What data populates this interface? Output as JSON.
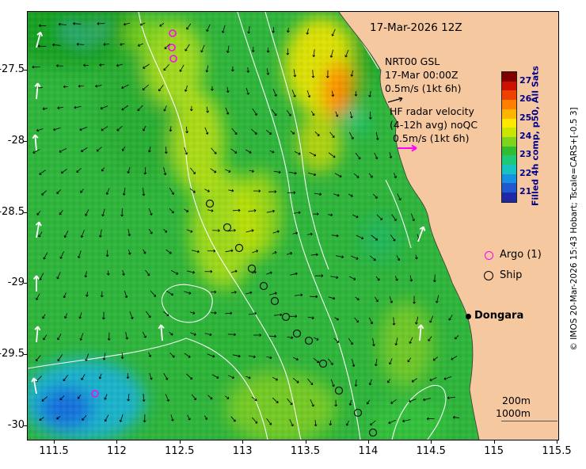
{
  "title_date": "17-Mar-2026 12Z",
  "nrt_block": [
    "NRT00 GSL",
    "17-Mar 00:00Z",
    "0.5m/s (1kt 6h)"
  ],
  "hf_block": [
    "HF radar velocity",
    "(4-12h avg) noQC",
    "0.5m/s (1kt 6h)"
  ],
  "legend": {
    "argo_label": "Argo (1)",
    "ship_label": "Ship"
  },
  "place_label": "Dongara",
  "depth_labels": [
    "200m",
    "1000m"
  ],
  "copyright": "© IMOS 20-Mar-2026 15:43 Hobart; Tscale=CARS+[-0.5 3]",
  "colorbar": {
    "label": "Filled 4h comp, p50, All Sats",
    "tick_values": [
      27,
      26,
      25,
      24,
      23,
      22,
      21
    ],
    "range": [
      20.5,
      27.5
    ],
    "colors_top_to_bottom": [
      "#800000",
      "#cc1100",
      "#f04000",
      "#ff8000",
      "#ffb400",
      "#ffe800",
      "#c8e600",
      "#7cd41e",
      "#30be30",
      "#1ec878",
      "#16c2c2",
      "#1690e0",
      "#2058d0",
      "#2028a8"
    ]
  },
  "axes": {
    "x_ticks": [
      111.5,
      112,
      112.5,
      113,
      113.5,
      114,
      114.5,
      115,
      115.5
    ],
    "y_ticks": [
      -27.5,
      -28,
      -28.5,
      -29,
      -29.5,
      -30
    ]
  },
  "map_data": {
    "land_color": "#f5c8a0",
    "ocean_base_color": "#2fb43c",
    "argo_markers": [
      [
        183,
        27
      ],
      [
        182,
        45
      ],
      [
        184,
        59
      ],
      [
        85,
        482
      ]
    ],
    "ship_markers": [
      [
        230,
        242
      ],
      [
        252,
        272
      ],
      [
        267,
        298
      ],
      [
        283,
        324
      ],
      [
        298,
        346
      ],
      [
        312,
        365
      ],
      [
        326,
        385
      ],
      [
        340,
        406
      ],
      [
        355,
        415
      ],
      [
        373,
        444
      ],
      [
        393,
        478
      ],
      [
        417,
        506
      ],
      [
        436,
        531
      ]
    ],
    "hf_white_arrows": [
      [
        11,
        45,
        -75
      ],
      [
        11,
        110,
        -85
      ],
      [
        11,
        175,
        -95
      ],
      [
        11,
        285,
        -80
      ],
      [
        11,
        353,
        -90
      ],
      [
        11,
        417,
        -85
      ],
      [
        11,
        482,
        -100
      ],
      [
        170,
        415,
        -95
      ],
      [
        493,
        290,
        -70
      ],
      [
        495,
        415,
        -85
      ]
    ],
    "dongara_dot_svg": [
      557,
      385
    ]
  }
}
